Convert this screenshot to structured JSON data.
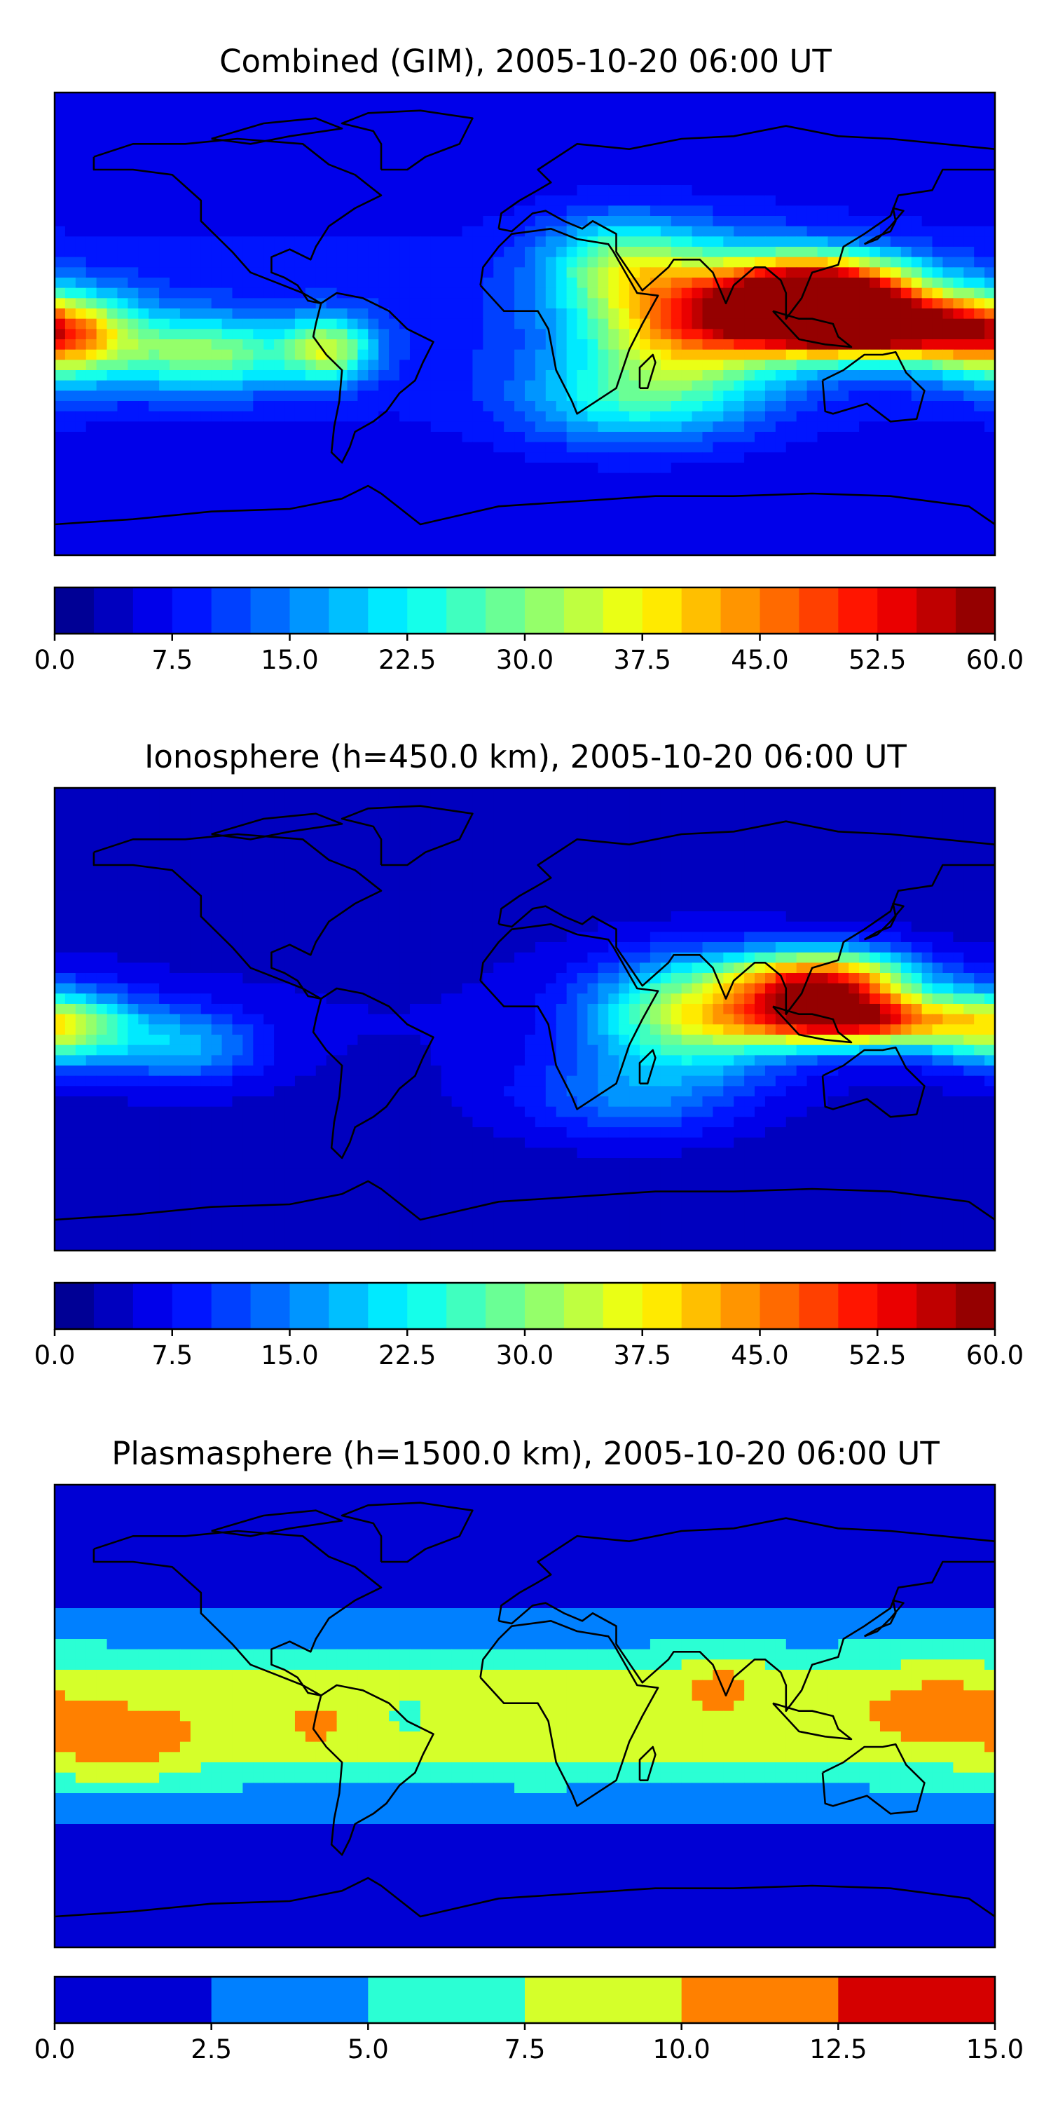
{
  "chart_data": [
    {
      "type": "heatmap",
      "title": "Combined (GIM), 2005-10-20 06:00 UT",
      "colorbar": {
        "ticks": [
          "0.0",
          "7.5",
          "15.0",
          "22.5",
          "30.0",
          "37.5",
          "45.0",
          "52.5",
          "60.0"
        ],
        "range": [
          0,
          60
        ],
        "levels": 24,
        "colormap": "jet"
      },
      "features": [
        {
          "lon": 115,
          "lat": 12,
          "value": 57,
          "sigma_lon": 26,
          "sigma_lat": 10
        },
        {
          "lon": 130,
          "lat": -2,
          "value": 52,
          "sigma_lon": 30,
          "sigma_lat": 8
        },
        {
          "lon": 65,
          "lat": 2,
          "value": 36,
          "sigma_lon": 30,
          "sigma_lat": 18
        },
        {
          "lon": -178,
          "lat": -5,
          "value": 34,
          "sigma_lon": 22,
          "sigma_lat": 12
        },
        {
          "lon": -120,
          "lat": -12,
          "value": 22,
          "sigma_lon": 22,
          "sigma_lat": 10
        },
        {
          "lon": -75,
          "lat": -10,
          "value": 24,
          "sigma_lon": 12,
          "sigma_lat": 9
        },
        {
          "lon": 35,
          "lat": 25,
          "value": 16,
          "sigma_lon": 20,
          "sigma_lat": 12
        },
        {
          "lon": 40,
          "lat": -30,
          "value": 14,
          "sigma_lon": 30,
          "sigma_lat": 12
        }
      ],
      "base_value": 9
    },
    {
      "type": "heatmap",
      "title": "Ionosphere  (h=450.0 km), 2005-10-20 06:00 UT",
      "colorbar": {
        "ticks": [
          "0.0",
          "7.5",
          "15.0",
          "22.5",
          "30.0",
          "37.5",
          "45.0",
          "52.5",
          "60.0"
        ],
        "range": [
          0,
          60
        ],
        "levels": 24,
        "colormap": "jet"
      },
      "features": [
        {
          "lon": 115,
          "lat": 14,
          "value": 46,
          "sigma_lon": 24,
          "sigma_lat": 9
        },
        {
          "lon": 125,
          "lat": -1,
          "value": 44,
          "sigma_lon": 28,
          "sigma_lat": 7
        },
        {
          "lon": 65,
          "lat": 2,
          "value": 28,
          "sigma_lon": 28,
          "sigma_lat": 15
        },
        {
          "lon": -178,
          "lat": -3,
          "value": 28,
          "sigma_lon": 20,
          "sigma_lat": 10
        },
        {
          "lon": -130,
          "lat": -10,
          "value": 13,
          "sigma_lon": 20,
          "sigma_lat": 10
        },
        {
          "lon": 40,
          "lat": -30,
          "value": 10,
          "sigma_lon": 30,
          "sigma_lat": 12
        }
      ],
      "base_value": 5
    },
    {
      "type": "heatmap",
      "title": "Plasmasphere (h=1500.0 km), 2005-10-20 06:00 UT",
      "colorbar": {
        "ticks": [
          "0.0",
          "2.5",
          "5.0",
          "7.5",
          "10.0",
          "12.5",
          "15.0"
        ],
        "range": [
          0,
          15
        ],
        "levels": 6,
        "colormap": "jet"
      },
      "features": [
        {
          "lon": -155,
          "lat": -15,
          "value": 3.5,
          "sigma_lon": 18,
          "sigma_lat": 10
        },
        {
          "lon": 75,
          "lat": 15,
          "value": 2.5,
          "sigma_lon": 12,
          "sigma_lat": 7
        },
        {
          "lon": -80,
          "lat": -5,
          "value": 1.2,
          "sigma_lon": 8,
          "sigma_lat": 6
        },
        {
          "lon": 5,
          "lat": -15,
          "value": 1.0,
          "sigma_lon": 8,
          "sigma_lat": 6
        },
        {
          "lon": -45,
          "lat": 0,
          "value": -3.0,
          "sigma_lon": 6,
          "sigma_lat": 6
        },
        {
          "lon": 160,
          "lat": 5,
          "value": 2.0,
          "sigma_lon": 18,
          "sigma_lat": 15
        }
      ],
      "base_value": 8.0,
      "lat_profile": "banded"
    }
  ]
}
